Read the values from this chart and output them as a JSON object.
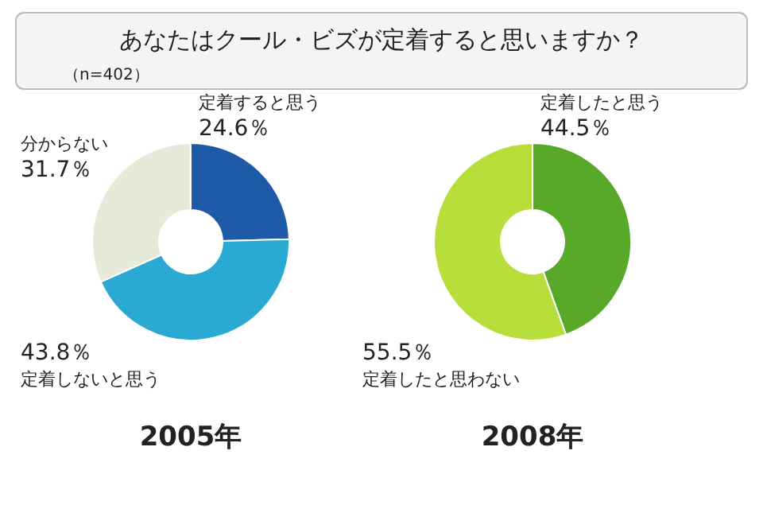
{
  "chart_data": [
    {
      "type": "other",
      "title": "あなたはクール・ビズが定着すると思いますか？",
      "subtitle": "（n=402）"
    },
    {
      "type": "donut",
      "title": "2005年",
      "categories": [
        "定着すると思う",
        "定着しないと思う",
        "分からない"
      ],
      "values": [
        24.6,
        43.8,
        31.7
      ],
      "colors": [
        "#1e5aa8",
        "#2aaad2",
        "#e6ebd9"
      ],
      "value_labels": [
        "24.6％",
        "43.8％",
        "31.7％"
      ]
    },
    {
      "type": "donut",
      "title": "2008年",
      "categories": [
        "定着したと思う",
        "定着したと思わない"
      ],
      "values": [
        44.5,
        55.5
      ],
      "colors": [
        "#58a82a",
        "#b8de3c"
      ],
      "value_labels": [
        "44.5％",
        "55.5％"
      ]
    }
  ]
}
